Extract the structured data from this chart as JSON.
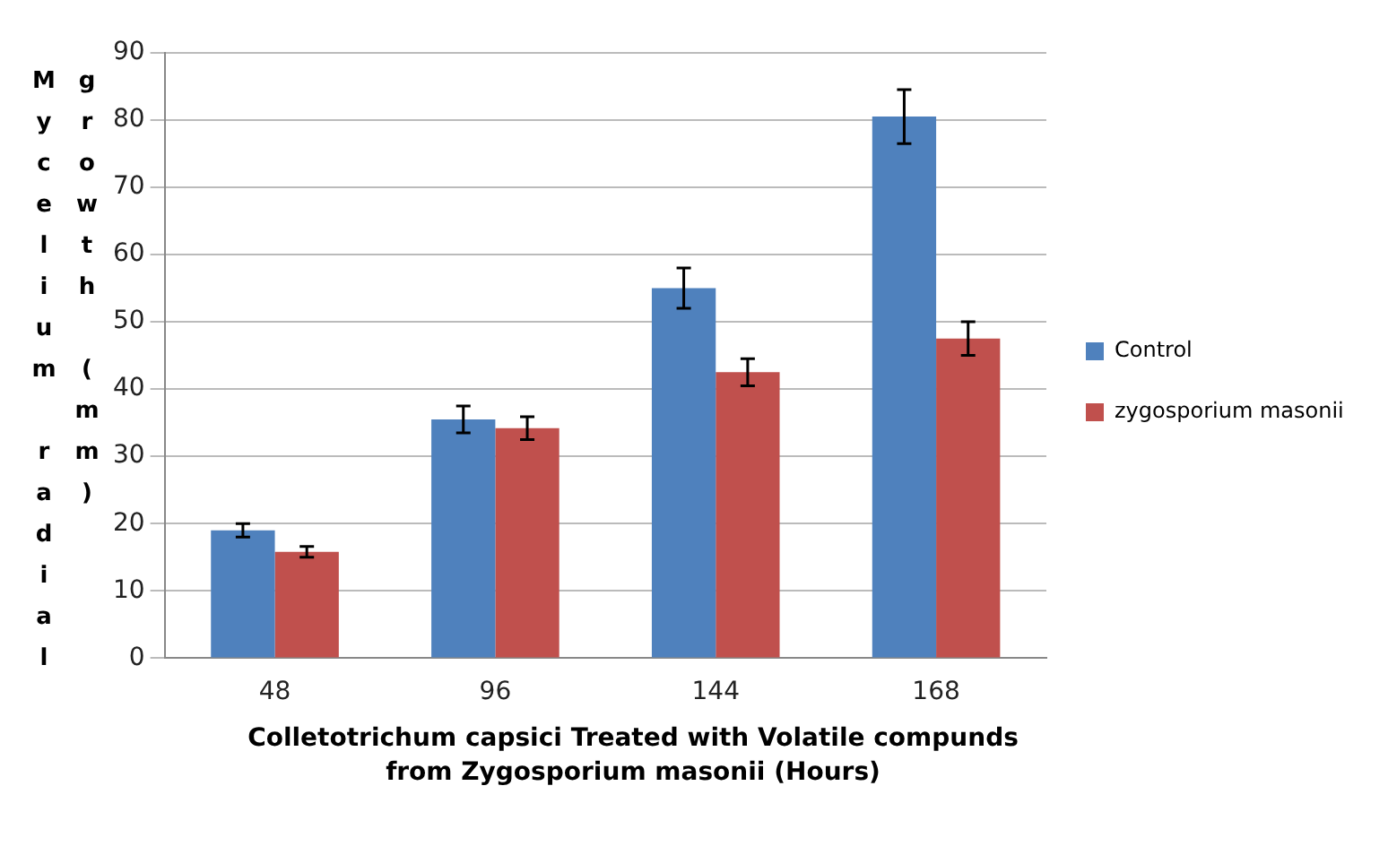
{
  "chart_data": {
    "type": "bar",
    "xlabel": "Colletotrichum capsici Treated with Volatile compunds from Zygosporium masonii (Hours)",
    "ylabel": "Mycelium radial growth (mm)",
    "categories": [
      "48",
      "96",
      "144",
      "168"
    ],
    "series": [
      {
        "name": "Control",
        "color": "#4f81bd",
        "values": [
          19,
          35.5,
          55,
          80.5
        ],
        "errors": [
          1,
          2,
          3,
          4
        ]
      },
      {
        "name": "zygosporium masonii",
        "color": "#c0504d",
        "values": [
          15.8,
          34.2,
          42.5,
          47.5
        ],
        "errors": [
          0.8,
          1.7,
          2,
          2.5
        ]
      }
    ],
    "ylim": [
      0,
      90
    ],
    "yticks": [
      0,
      10,
      20,
      30,
      40,
      50,
      60,
      70,
      80,
      90
    ],
    "grid": "y",
    "legend": "right"
  }
}
